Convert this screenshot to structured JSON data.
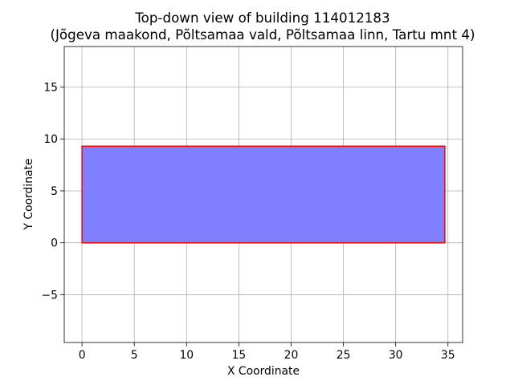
{
  "chart_data": {
    "type": "polygon",
    "title": [
      "Top-down view of building 114012183",
      "(Jõgeva maakond, Põltsamaa vald, Põltsamaa linn, Tartu mnt 4)"
    ],
    "xlabel": "X Coordinate",
    "ylabel": "Y Coordinate",
    "xlim": [
      -1.7,
      36.4
    ],
    "ylim": [
      -9.6,
      18.9
    ],
    "xticks": [
      0,
      5,
      10,
      15,
      20,
      25,
      30,
      35
    ],
    "yticks": [
      -5,
      0,
      5,
      10,
      15
    ],
    "xtick_labels": [
      "0",
      "5",
      "10",
      "15",
      "20",
      "25",
      "30",
      "35"
    ],
    "ytick_labels": [
      "−5",
      "0",
      "5",
      "10",
      "15"
    ],
    "grid": true,
    "shapes": [
      {
        "points": [
          [
            0,
            0
          ],
          [
            34.7,
            0
          ],
          [
            34.7,
            9.3
          ],
          [
            0,
            9.3
          ]
        ],
        "fill": "#8080ff",
        "edge": "#ff0000"
      }
    ]
  }
}
